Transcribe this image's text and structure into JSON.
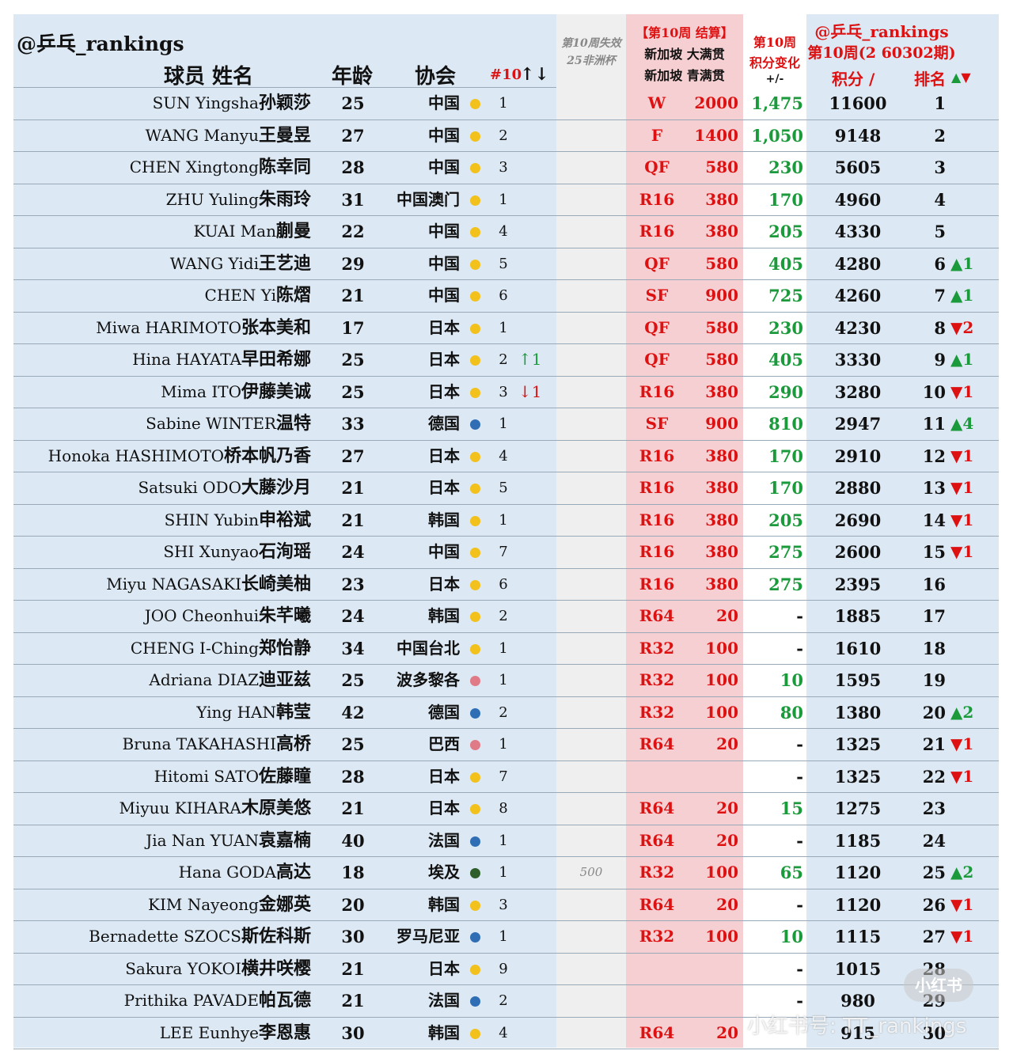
{
  "header": {
    "account": "@乒乓_rankings",
    "name_col": "球员 姓名",
    "age_col": "年龄",
    "assoc_col": "协会",
    "assoc_rank_col": "#10",
    "assoc_rank_arrow": "↑↓",
    "lost_col_line1": "第10周失效",
    "lost_col_line2": "25非洲杯",
    "singapore_line1": "【第10周 结算】",
    "singapore_line2": "新加坡 大满贯",
    "singapore_line3": "新加坡 青满贯",
    "delta_line1": "第10周",
    "delta_line2": "积分变化",
    "delta_line3": "+/-",
    "ranking_line1": "@乒乓_rankings",
    "ranking_line2": "第10周(2 60302期)",
    "points_col": "积分 /",
    "rank_col": "排名",
    "up_symbol": "▲",
    "down_symbol": "▼"
  },
  "colors": {
    "sheet_bg": "#dce8f3",
    "singapore_bg": "#f6cfd2",
    "lost_bg": "#efefef",
    "red": "#dd1111",
    "green": "#1a9a3a",
    "dot_yellow": "#f2c11c",
    "dot_blue": "#2f6db5",
    "dot_pink": "#e07a86",
    "dot_darkgreen": "#2e5e2a"
  },
  "players": [
    {
      "en": "SUN Yingsha",
      "zh": "孙颖莎",
      "age": "25",
      "assoc": "中国",
      "dot": "yellow",
      "arank": "1",
      "amove": "",
      "adir": "",
      "lost": "",
      "round": "W",
      "spts": "2000",
      "delta": "1,475",
      "pts": "11600",
      "rank": "1",
      "chg": "",
      "cdir": ""
    },
    {
      "en": "WANG Manyu",
      "zh": "王曼昱",
      "age": "27",
      "assoc": "中国",
      "dot": "yellow",
      "arank": "2",
      "amove": "",
      "adir": "",
      "lost": "",
      "round": "F",
      "spts": "1400",
      "delta": "1,050",
      "pts": "9148",
      "rank": "2",
      "chg": "",
      "cdir": ""
    },
    {
      "en": "CHEN Xingtong",
      "zh": "陈幸同",
      "age": "28",
      "assoc": "中国",
      "dot": "yellow",
      "arank": "3",
      "amove": "",
      "adir": "",
      "lost": "",
      "round": "QF",
      "spts": "580",
      "delta": "230",
      "pts": "5605",
      "rank": "3",
      "chg": "",
      "cdir": ""
    },
    {
      "en": "ZHU Yuling",
      "zh": "朱雨玲",
      "age": "31",
      "assoc": "中国澳门",
      "dot": "yellow",
      "arank": "1",
      "amove": "",
      "adir": "",
      "lost": "",
      "round": "R16",
      "spts": "380",
      "delta": "170",
      "pts": "4960",
      "rank": "4",
      "chg": "",
      "cdir": ""
    },
    {
      "en": "KUAI Man",
      "zh": "蒯曼",
      "age": "22",
      "assoc": "中国",
      "dot": "yellow",
      "arank": "4",
      "amove": "",
      "adir": "",
      "lost": "",
      "round": "R16",
      "spts": "380",
      "delta": "205",
      "pts": "4330",
      "rank": "5",
      "chg": "",
      "cdir": ""
    },
    {
      "en": "WANG Yidi",
      "zh": "王艺迪",
      "age": "29",
      "assoc": "中国",
      "dot": "yellow",
      "arank": "5",
      "amove": "",
      "adir": "",
      "lost": "",
      "round": "QF",
      "spts": "580",
      "delta": "405",
      "pts": "4280",
      "rank": "6",
      "chg": "▲1",
      "cdir": "up"
    },
    {
      "en": "CHEN Yi",
      "zh": "陈熠",
      "age": "21",
      "assoc": "中国",
      "dot": "yellow",
      "arank": "6",
      "amove": "",
      "adir": "",
      "lost": "",
      "round": "SF",
      "spts": "900",
      "delta": "725",
      "pts": "4260",
      "rank": "7",
      "chg": "▲1",
      "cdir": "up"
    },
    {
      "en": "Miwa HARIMOTO",
      "zh": "张本美和",
      "age": "17",
      "assoc": "日本",
      "dot": "yellow",
      "arank": "1",
      "amove": "",
      "adir": "",
      "lost": "",
      "round": "QF",
      "spts": "580",
      "delta": "230",
      "pts": "4230",
      "rank": "8",
      "chg": "▼2",
      "cdir": "down"
    },
    {
      "en": "Hina HAYATA",
      "zh": "早田希娜",
      "age": "25",
      "assoc": "日本",
      "dot": "yellow",
      "arank": "2",
      "amove": "↑1",
      "adir": "up",
      "lost": "",
      "round": "QF",
      "spts": "580",
      "delta": "405",
      "pts": "3330",
      "rank": "9",
      "chg": "▲1",
      "cdir": "up"
    },
    {
      "en": "Mima ITO",
      "zh": "伊藤美诚",
      "age": "25",
      "assoc": "日本",
      "dot": "yellow",
      "arank": "3",
      "amove": "↓1",
      "adir": "down",
      "lost": "",
      "round": "R16",
      "spts": "380",
      "delta": "290",
      "pts": "3280",
      "rank": "10",
      "chg": "▼1",
      "cdir": "down"
    },
    {
      "en": "Sabine WINTER",
      "zh": "温特",
      "age": "33",
      "assoc": "德国",
      "dot": "blue",
      "arank": "1",
      "amove": "",
      "adir": "",
      "lost": "",
      "round": "SF",
      "spts": "900",
      "delta": "810",
      "pts": "2947",
      "rank": "11",
      "chg": "▲4",
      "cdir": "up"
    },
    {
      "en": "Honoka HASHIMOTO",
      "zh": "桥本帆乃香",
      "age": "27",
      "assoc": "日本",
      "dot": "yellow",
      "arank": "4",
      "amove": "",
      "adir": "",
      "lost": "",
      "round": "R16",
      "spts": "380",
      "delta": "170",
      "pts": "2910",
      "rank": "12",
      "chg": "▼1",
      "cdir": "down"
    },
    {
      "en": "Satsuki ODO",
      "zh": "大藤沙月",
      "age": "21",
      "assoc": "日本",
      "dot": "yellow",
      "arank": "5",
      "amove": "",
      "adir": "",
      "lost": "",
      "round": "R16",
      "spts": "380",
      "delta": "170",
      "pts": "2880",
      "rank": "13",
      "chg": "▼1",
      "cdir": "down"
    },
    {
      "en": "SHIN Yubin",
      "zh": "申裕斌",
      "age": "21",
      "assoc": "韩国",
      "dot": "yellow",
      "arank": "1",
      "amove": "",
      "adir": "",
      "lost": "",
      "round": "R16",
      "spts": "380",
      "delta": "205",
      "pts": "2690",
      "rank": "14",
      "chg": "▼1",
      "cdir": "down"
    },
    {
      "en": "SHI Xunyao",
      "zh": "石洵瑶",
      "age": "24",
      "assoc": "中国",
      "dot": "yellow",
      "arank": "7",
      "amove": "",
      "adir": "",
      "lost": "",
      "round": "R16",
      "spts": "380",
      "delta": "275",
      "pts": "2600",
      "rank": "15",
      "chg": "▼1",
      "cdir": "down"
    },
    {
      "en": "Miyu NAGASAKI",
      "zh": "长崎美柚",
      "age": "23",
      "assoc": "日本",
      "dot": "yellow",
      "arank": "6",
      "amove": "",
      "adir": "",
      "lost": "",
      "round": "R16",
      "spts": "380",
      "delta": "275",
      "pts": "2395",
      "rank": "16",
      "chg": "",
      "cdir": ""
    },
    {
      "en": "JOO Cheonhui",
      "zh": "朱芊曦",
      "age": "24",
      "assoc": "韩国",
      "dot": "yellow",
      "arank": "2",
      "amove": "",
      "adir": "",
      "lost": "",
      "round": "R64",
      "spts": "20",
      "delta": "-",
      "pts": "1885",
      "rank": "17",
      "chg": "",
      "cdir": ""
    },
    {
      "en": "CHENG I-Ching",
      "zh": "郑怡静",
      "age": "34",
      "assoc": "中国台北",
      "dot": "yellow",
      "arank": "1",
      "amove": "",
      "adir": "",
      "lost": "",
      "round": "R32",
      "spts": "100",
      "delta": "-",
      "pts": "1610",
      "rank": "18",
      "chg": "",
      "cdir": ""
    },
    {
      "en": "Adriana DIAZ",
      "zh": "迪亚兹",
      "age": "25",
      "assoc": "波多黎各",
      "dot": "pink",
      "arank": "1",
      "amove": "",
      "adir": "",
      "lost": "",
      "round": "R32",
      "spts": "100",
      "delta": "10",
      "pts": "1595",
      "rank": "19",
      "chg": "",
      "cdir": ""
    },
    {
      "en": "Ying HAN",
      "zh": "韩莹",
      "age": "42",
      "assoc": "德国",
      "dot": "blue",
      "arank": "2",
      "amove": "",
      "adir": "",
      "lost": "",
      "round": "R32",
      "spts": "100",
      "delta": "80",
      "pts": "1380",
      "rank": "20",
      "chg": "▲2",
      "cdir": "up"
    },
    {
      "en": "Bruna TAKAHASHI",
      "zh": "高桥",
      "age": "25",
      "assoc": "巴西",
      "dot": "pink",
      "arank": "1",
      "amove": "",
      "adir": "",
      "lost": "",
      "round": "R64",
      "spts": "20",
      "delta": "-",
      "pts": "1325",
      "rank": "21",
      "chg": "▼1",
      "cdir": "down"
    },
    {
      "en": "Hitomi SATO",
      "zh": "佐藤瞳",
      "age": "28",
      "assoc": "日本",
      "dot": "yellow",
      "arank": "7",
      "amove": "",
      "adir": "",
      "lost": "",
      "round": "",
      "spts": "",
      "delta": "-",
      "pts": "1325",
      "rank": "22",
      "chg": "▼1",
      "cdir": "down"
    },
    {
      "en": "Miyuu KIHARA",
      "zh": "木原美悠",
      "age": "21",
      "assoc": "日本",
      "dot": "yellow",
      "arank": "8",
      "amove": "",
      "adir": "",
      "lost": "",
      "round": "R64",
      "spts": "20",
      "delta": "15",
      "pts": "1275",
      "rank": "23",
      "chg": "",
      "cdir": ""
    },
    {
      "en": "Jia Nan YUAN",
      "zh": "袁嘉楠",
      "age": "40",
      "assoc": "法国",
      "dot": "blue",
      "arank": "1",
      "amove": "",
      "adir": "",
      "lost": "",
      "round": "R64",
      "spts": "20",
      "delta": "-",
      "pts": "1185",
      "rank": "24",
      "chg": "",
      "cdir": ""
    },
    {
      "en": "Hana GODA",
      "zh": "高达",
      "age": "18",
      "assoc": "埃及",
      "dot": "darkgreen",
      "arank": "1",
      "amove": "",
      "adir": "",
      "lost": "500",
      "round": "R32",
      "spts": "100",
      "delta": "65",
      "pts": "1120",
      "rank": "25",
      "chg": "▲2",
      "cdir": "up"
    },
    {
      "en": "KIM Nayeong",
      "zh": "金娜英",
      "age": "20",
      "assoc": "韩国",
      "dot": "yellow",
      "arank": "3",
      "amove": "",
      "adir": "",
      "lost": "",
      "round": "R64",
      "spts": "20",
      "delta": "-",
      "pts": "1120",
      "rank": "26",
      "chg": "▼1",
      "cdir": "down"
    },
    {
      "en": "Bernadette SZOCS",
      "zh": "斯佐科斯",
      "age": "30",
      "assoc": "罗马尼亚",
      "dot": "blue",
      "arank": "1",
      "amove": "",
      "adir": "",
      "lost": "",
      "round": "R32",
      "spts": "100",
      "delta": "10",
      "pts": "1115",
      "rank": "27",
      "chg": "▼1",
      "cdir": "down"
    },
    {
      "en": "Sakura YOKOI",
      "zh": "横井咲樱",
      "age": "21",
      "assoc": "日本",
      "dot": "yellow",
      "arank": "9",
      "amove": "",
      "adir": "",
      "lost": "",
      "round": "",
      "spts": "",
      "delta": "-",
      "pts": "1015",
      "rank": "28",
      "chg": "",
      "cdir": ""
    },
    {
      "en": "Prithika PAVADE",
      "zh": "帕瓦德",
      "age": "21",
      "assoc": "法国",
      "dot": "blue",
      "arank": "2",
      "amove": "",
      "adir": "",
      "lost": "",
      "round": "",
      "spts": "",
      "delta": "-",
      "pts": "980",
      "rank": "29",
      "chg": "",
      "cdir": ""
    },
    {
      "en": "LEE Eunhye",
      "zh": "李恩惠",
      "age": "30",
      "assoc": "韩国",
      "dot": "yellow",
      "arank": "4",
      "amove": "",
      "adir": "",
      "lost": "",
      "round": "R64",
      "spts": "20",
      "delta": "",
      "pts": "915",
      "rank": "30",
      "chg": "",
      "cdir": ""
    }
  ],
  "watermark": {
    "badge": "小红书",
    "text": "小红书号: TT_rankings"
  }
}
